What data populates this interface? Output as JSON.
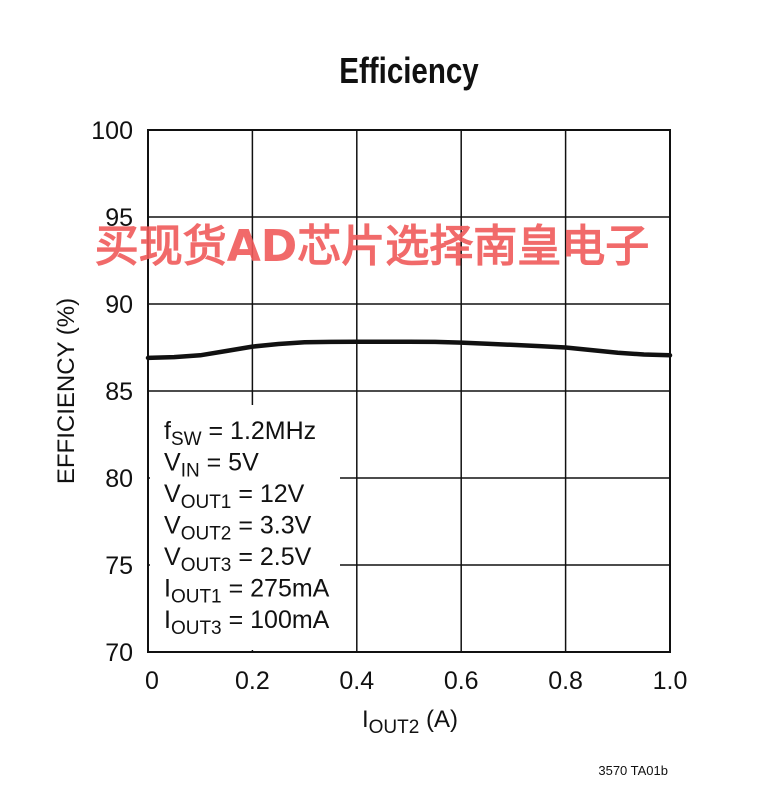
{
  "chart_data": {
    "type": "line",
    "title": "Efficiency",
    "xlabel_main": "I",
    "xlabel_sub": "OUT2",
    "xlabel_unit": " (A)",
    "ylabel": "EFFICIENCY (%)",
    "xlim": [
      0,
      1.0
    ],
    "ylim": [
      70,
      100
    ],
    "xticks": [
      "0",
      "0.2",
      "0.4",
      "0.6",
      "0.8",
      "1.0"
    ],
    "yticks": [
      "70",
      "75",
      "80",
      "85",
      "90",
      "95",
      "100"
    ],
    "grid": true,
    "series": [
      {
        "x": [
          0,
          0.05,
          0.1,
          0.15,
          0.2,
          0.25,
          0.3,
          0.35,
          0.4,
          0.45,
          0.5,
          0.55,
          0.6,
          0.65,
          0.7,
          0.75,
          0.8,
          0.85,
          0.9,
          0.95,
          1.0
        ],
        "y": [
          86.9,
          86.95,
          87.05,
          87.3,
          87.55,
          87.7,
          87.8,
          87.82,
          87.83,
          87.83,
          87.83,
          87.82,
          87.78,
          87.72,
          87.65,
          87.58,
          87.5,
          87.35,
          87.2,
          87.1,
          87.05
        ]
      }
    ],
    "annotations": [
      {
        "main": "f",
        "sub": "SW",
        "rest": " = 1.2MHz"
      },
      {
        "main": "V",
        "sub": "IN",
        "rest": " = 5V"
      },
      {
        "main": "V",
        "sub": "OUT1",
        "rest": " = 12V"
      },
      {
        "main": "V",
        "sub": "OUT2",
        "rest": " = 3.3V"
      },
      {
        "main": "V",
        "sub": "OUT3",
        "rest": " = 2.5V"
      },
      {
        "main": "I",
        "sub": "OUT1",
        "rest": " = 275mA"
      },
      {
        "main": "I",
        "sub": "OUT3",
        "rest": " = 100mA"
      }
    ],
    "figure_code": "3570 TA01b"
  },
  "watermark": "买现货AD芯片选择南皇电子",
  "colors": {
    "line": "#111111",
    "grid": "#111111",
    "watermark": "#f05a5a"
  }
}
